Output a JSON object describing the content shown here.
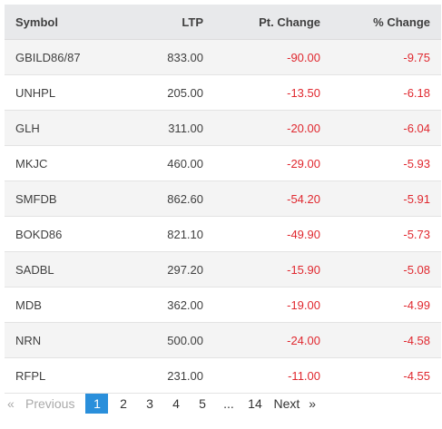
{
  "table": {
    "headers": {
      "symbol": "Symbol",
      "ltp": "LTP",
      "pt_change": "Pt. Change",
      "pct_change": "% Change"
    },
    "rows": [
      {
        "symbol": "GBILD86/87",
        "ltp": "833.00",
        "pt_change": "-90.00",
        "pct_change": "-9.75"
      },
      {
        "symbol": "UNHPL",
        "ltp": "205.00",
        "pt_change": "-13.50",
        "pct_change": "-6.18"
      },
      {
        "symbol": "GLH",
        "ltp": "311.00",
        "pt_change": "-20.00",
        "pct_change": "-6.04"
      },
      {
        "symbol": "MKJC",
        "ltp": "460.00",
        "pt_change": "-29.00",
        "pct_change": "-5.93"
      },
      {
        "symbol": "SMFDB",
        "ltp": "862.60",
        "pt_change": "-54.20",
        "pct_change": "-5.91"
      },
      {
        "symbol": "BOKD86",
        "ltp": "821.10",
        "pt_change": "-49.90",
        "pct_change": "-5.73"
      },
      {
        "symbol": "SADBL",
        "ltp": "297.20",
        "pt_change": "-15.90",
        "pct_change": "-5.08"
      },
      {
        "symbol": "MDB",
        "ltp": "362.00",
        "pt_change": "-19.00",
        "pct_change": "-4.99"
      },
      {
        "symbol": "NRN",
        "ltp": "500.00",
        "pt_change": "-24.00",
        "pct_change": "-4.58"
      },
      {
        "symbol": "RFPL",
        "ltp": "231.00",
        "pt_change": "-11.00",
        "pct_change": "-4.55"
      }
    ]
  },
  "pagination": {
    "prev_arrow": "«",
    "prev_label": "Previous",
    "pages": [
      "1",
      "2",
      "3",
      "4",
      "5"
    ],
    "active_page": "1",
    "ellipsis": "...",
    "last_page": "14",
    "next_label": "Next",
    "next_arrow": "»"
  },
  "colors": {
    "negative": "#e0282f",
    "header_bg": "#e8e9eb",
    "active_page_bg": "#2a8fdb"
  }
}
